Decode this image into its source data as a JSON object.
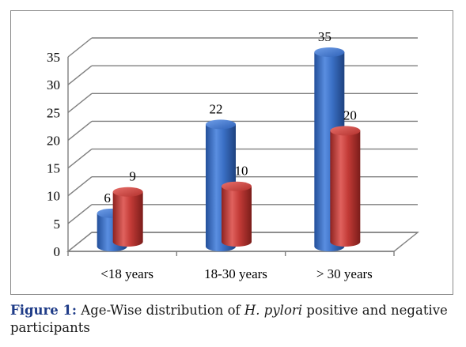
{
  "chart_data": {
    "type": "bar",
    "categories": [
      "<18 years",
      "18-30 years",
      "> 30 years"
    ],
    "series": [
      {
        "name": "",
        "values": [
          6,
          22,
          35
        ],
        "color": "#3a6fc4"
      },
      {
        "name": "",
        "values": [
          9,
          10,
          20
        ],
        "color": "#c23a36"
      }
    ],
    "ylim": [
      0,
      35
    ],
    "yticks": [
      0,
      5,
      10,
      15,
      20,
      25,
      30,
      35
    ],
    "grid": true,
    "style": "3d-cylinder"
  },
  "caption": {
    "label": "Figure 1:",
    "text_before": " Age-Wise distribution of ",
    "italic": "H. pylori",
    "text_after": " positive and negative participants"
  }
}
